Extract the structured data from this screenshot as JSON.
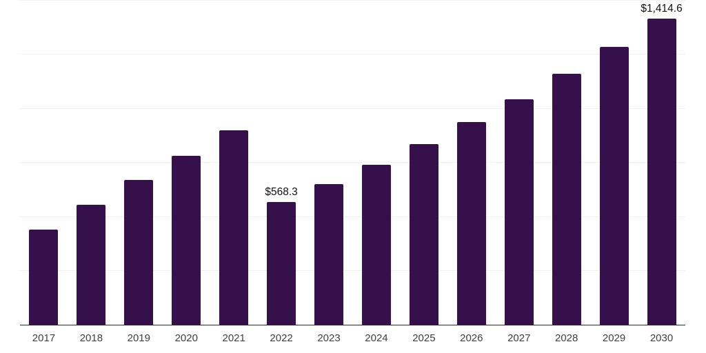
{
  "chart_data": {
    "type": "bar",
    "title": "",
    "xlabel": "",
    "ylabel": "",
    "categories": [
      "2017",
      "2018",
      "2019",
      "2020",
      "2021",
      "2022",
      "2023",
      "2024",
      "2025",
      "2026",
      "2027",
      "2028",
      "2029",
      "2030"
    ],
    "values": [
      440,
      555,
      669,
      781,
      899,
      568.3,
      651,
      739,
      833,
      935,
      1042,
      1159,
      1283,
      1414.6
    ],
    "value_labels": {
      "2022": "$568.3",
      "2030": "$1,414.6"
    },
    "ylim": [
      0,
      1500
    ],
    "gridline_values": [
      250,
      500,
      750,
      1000,
      1250,
      1500
    ],
    "grid": "horizontal-only",
    "legend": "none",
    "y_axis_tick_labels_visible": false,
    "colors": {
      "bar": "#36104B",
      "axis_line": "#262626",
      "gridline": "#f2f2f2",
      "x_label_text": "#3f3f3f",
      "value_label_text": "#111111",
      "background": "#ffffff"
    }
  }
}
